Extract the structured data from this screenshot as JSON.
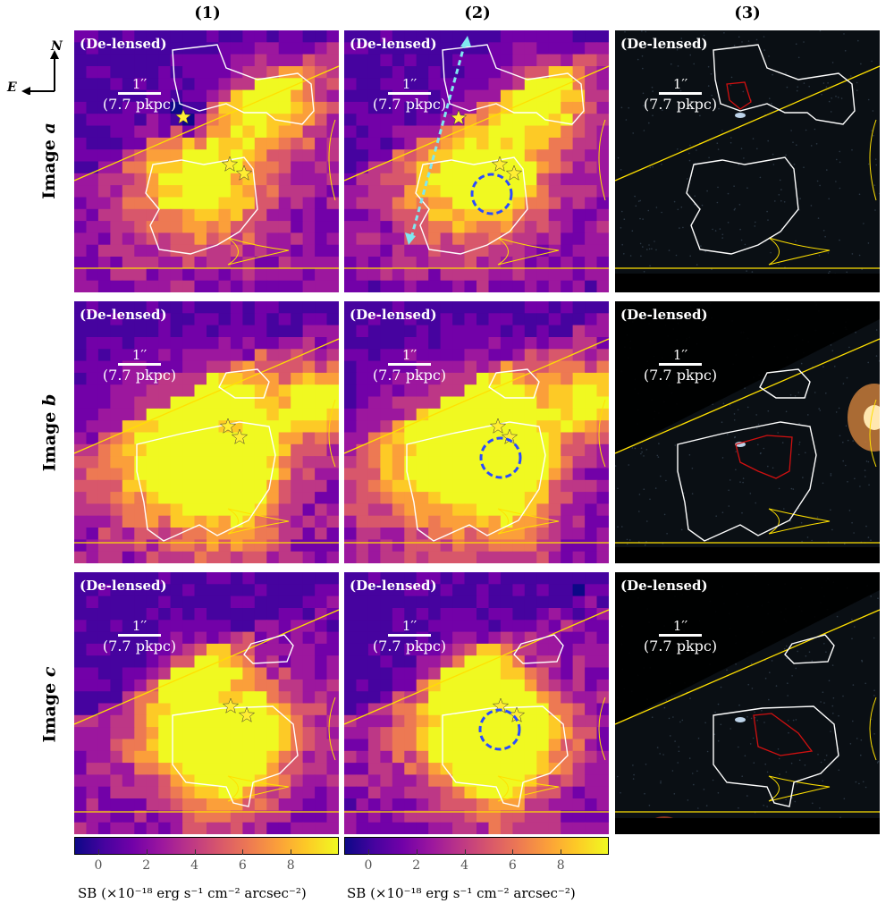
{
  "columns": [
    {
      "label": "(1)"
    },
    {
      "label": "(2)"
    },
    {
      "label": "(3)"
    }
  ],
  "rows": [
    {
      "label_prefix": "Image ",
      "label_italic": "a"
    },
    {
      "label_prefix": "Image ",
      "label_italic": "b"
    },
    {
      "label_prefix": "Image ",
      "label_italic": "c"
    }
  ],
  "panel_tag": "(De-lensed)",
  "scale": {
    "arcsec": "1′′",
    "kpc": "(7.7 pkpc)"
  },
  "compass": {
    "north": "N",
    "east": "E"
  },
  "colorbar": {
    "ticks": [
      "0",
      "2",
      "4",
      "6",
      "8"
    ],
    "tick_values": [
      0,
      2,
      4,
      6,
      8
    ],
    "range": [
      -1,
      10
    ],
    "title": "SB (×10⁻¹⁸ erg s⁻¹ cm⁻² arcsec⁻²)",
    "colormap": "plasma"
  },
  "colors": {
    "contour_outer": "#ffffff",
    "contour_inner": "#d01010",
    "critical_curve": "#ffe000",
    "arrow": "#7fe8f0",
    "aperture": "#2a4bff",
    "star": "#ffee33"
  }
}
